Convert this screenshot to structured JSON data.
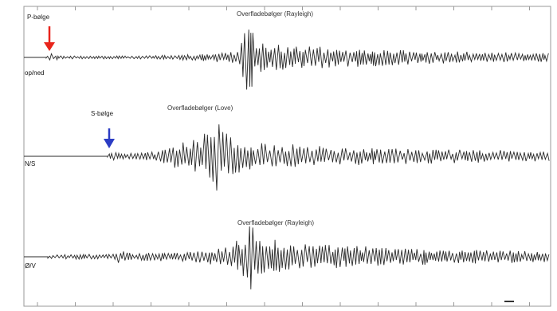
{
  "annotations": {
    "p_wave": "P-bølge",
    "s_wave": "S-bølge",
    "surface_rayleigh_top": "Overfladebølger (Rayleigh)",
    "surface_love": "Overfladebølger (Love)",
    "surface_rayleigh_bottom": "Overfladebølger (Rayleigh)"
  },
  "channels": {
    "vertical": "op/ned",
    "north_south": "N/S",
    "east_west": "Ø/V"
  },
  "colors": {
    "trace": "#2a2a2a",
    "p_arrow": "#e8241b",
    "s_arrow": "#2b3cc4",
    "frame": "#9a9a9a"
  }
}
